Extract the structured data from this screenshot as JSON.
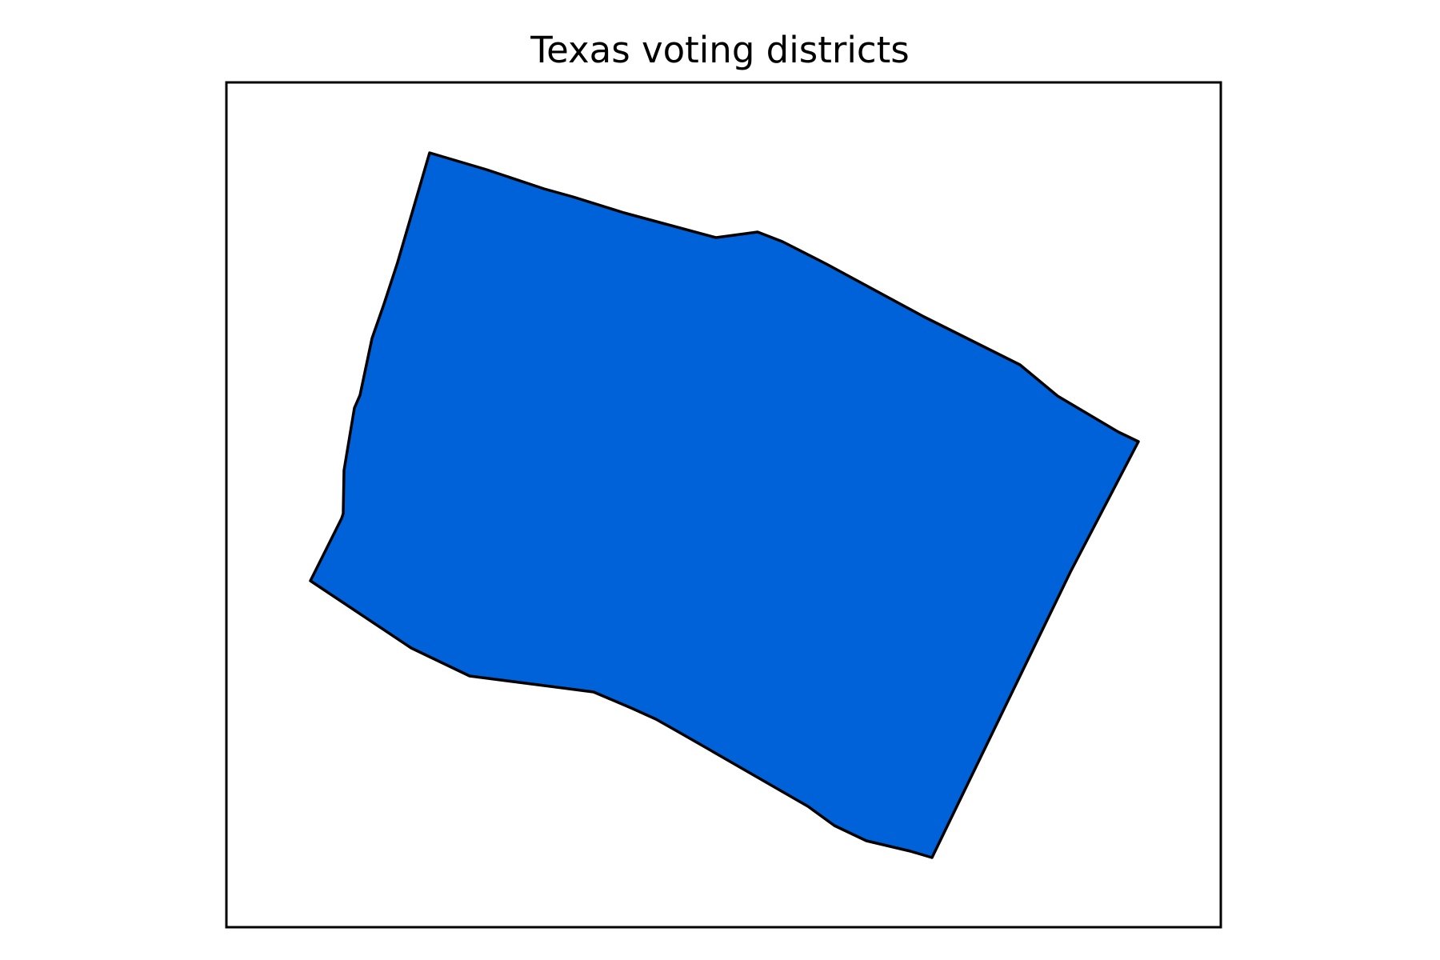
{
  "map": {
    "title": "Texas voting districts",
    "district": {
      "fill_color": "#0062D9",
      "stroke_color": "#000000"
    },
    "frame_color": "#000000",
    "background_color": "#ffffff"
  }
}
